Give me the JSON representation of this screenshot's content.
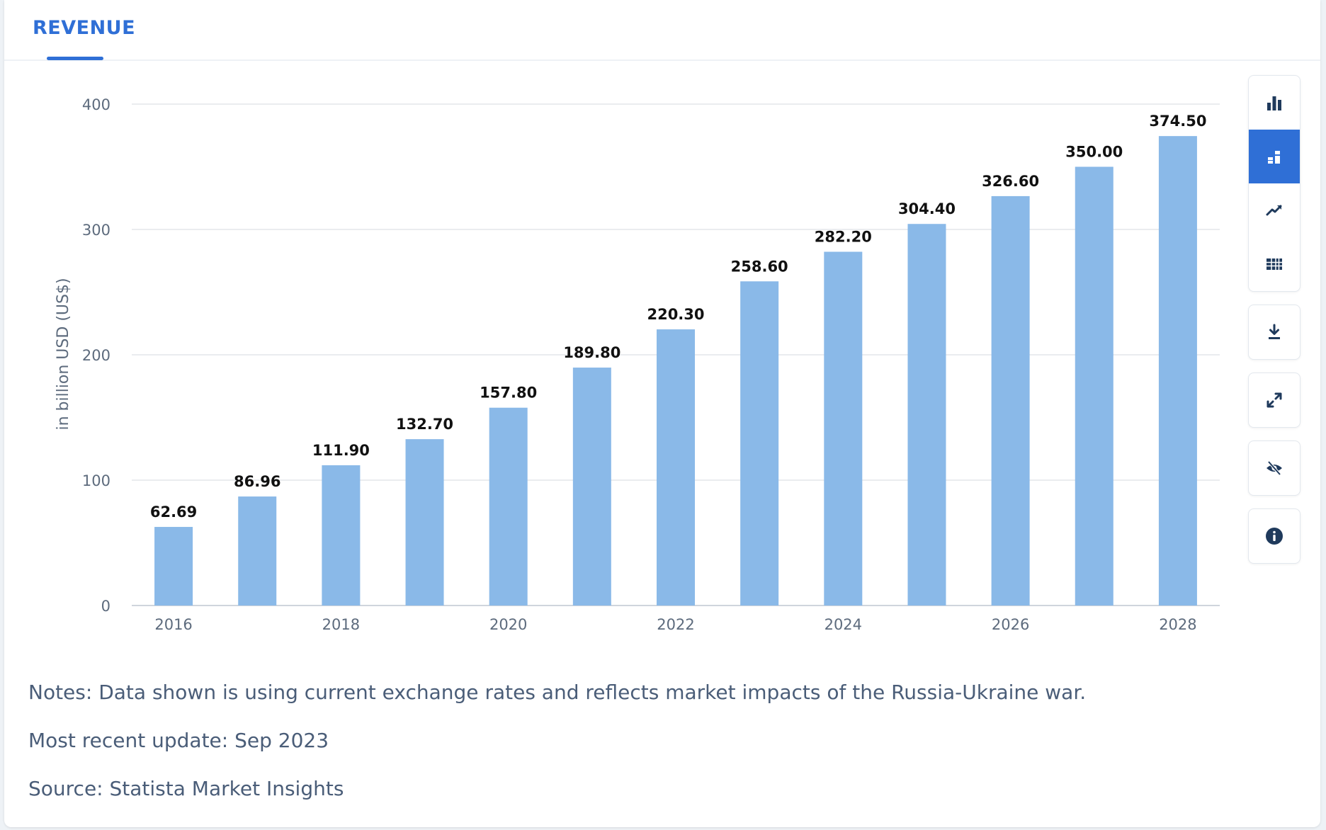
{
  "tabs": [
    {
      "label": "REVENUE",
      "active": true
    }
  ],
  "colors": {
    "accent": "#2f6fd6",
    "bar": "#8ab9e8",
    "text": "#4a5d78",
    "grid": "#e3e6ea"
  },
  "toolbar": {
    "chart_view_icons": [
      "bar-chart-icon",
      "stacked-bar-icon",
      "trend-line-icon",
      "table-grid-icon"
    ],
    "active_view": "stacked-bar-icon",
    "actions": [
      "download-icon",
      "expand-icon",
      "hide-icon",
      "info-icon"
    ]
  },
  "notes": {
    "note": "Notes: Data shown is using current exchange rates and reflects market impacts of the Russia-Ukraine war.",
    "update": "Most recent update: Sep 2023",
    "source": "Source: Statista Market Insights"
  },
  "chart_data": {
    "type": "bar",
    "categories": [
      "2016",
      "2017",
      "2018",
      "2019",
      "2020",
      "2021",
      "2022",
      "2023",
      "2024",
      "2025",
      "2026",
      "2027",
      "2028"
    ],
    "values": [
      62.69,
      86.96,
      111.9,
      132.7,
      157.8,
      189.8,
      220.3,
      258.6,
      282.2,
      304.4,
      326.6,
      350.0,
      374.5
    ],
    "value_labels": [
      "62.69",
      "86.96",
      "111.90",
      "132.70",
      "157.80",
      "189.80",
      "220.30",
      "258.60",
      "282.20",
      "304.40",
      "326.60",
      "350.00",
      "374.50"
    ],
    "x_tick_labels": [
      "2016",
      "",
      "2018",
      "",
      "2020",
      "",
      "2022",
      "",
      "2024",
      "",
      "2026",
      "",
      "2028"
    ],
    "y_ticks": [
      0,
      100,
      200,
      300,
      400
    ],
    "ylim": [
      0,
      400
    ],
    "ylabel": "in billion USD (US$)",
    "xlabel": "",
    "title": "",
    "grid": true
  }
}
